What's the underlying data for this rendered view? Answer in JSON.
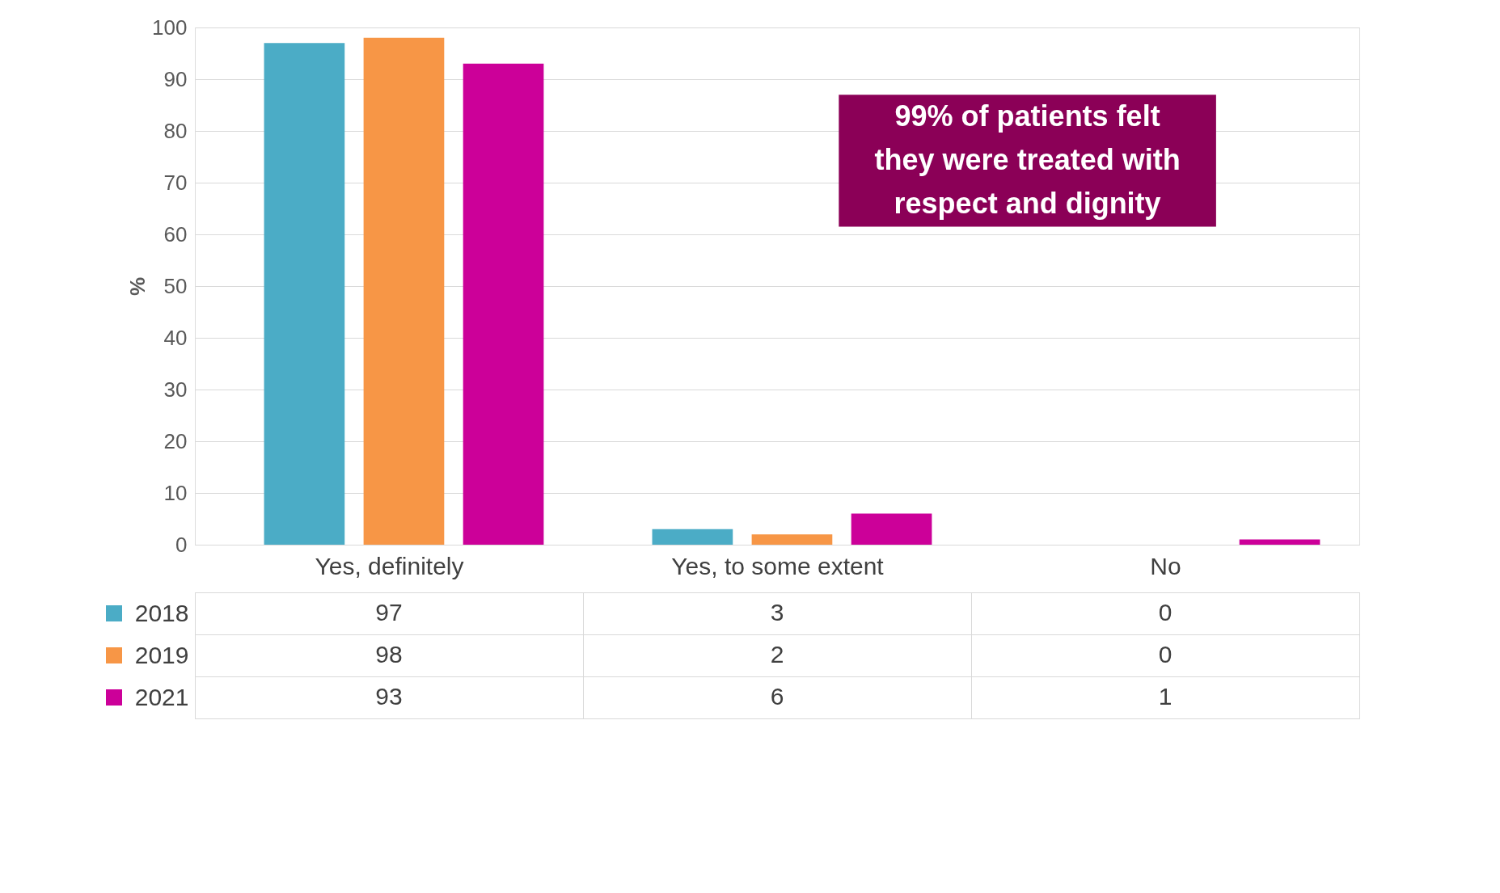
{
  "chart_data": {
    "type": "bar",
    "ylabel": "%",
    "categories": [
      "Yes, definitely",
      "Yes, to some extent",
      "No"
    ],
    "series": [
      {
        "name": "2018",
        "color": "#4bacc6",
        "values": [
          97,
          3,
          0
        ]
      },
      {
        "name": "2019",
        "color": "#f79646",
        "values": [
          98,
          2,
          0
        ]
      },
      {
        "name": "2021",
        "color": "#cc0099",
        "values": [
          93,
          6,
          1
        ]
      }
    ],
    "ylim": [
      0,
      100
    ],
    "yticks": [
      0,
      10,
      20,
      30,
      40,
      50,
      60,
      70,
      80,
      90,
      100
    ],
    "grid": "y",
    "data_labels": true,
    "legend": "bottom left",
    "annotations": [
      "99% of patients felt they were treated with respect and dignity"
    ]
  }
}
